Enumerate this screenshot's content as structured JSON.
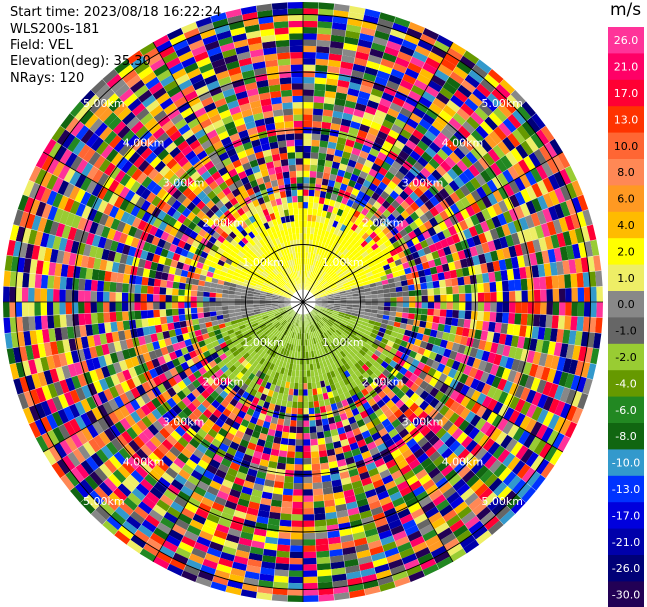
{
  "header": {
    "start_time": "Start time: 2023/08/18 16:22:24",
    "instrument": "WLS200s-181",
    "field": "Field: VEL",
    "elevation": "Elevation(deg): 35.30",
    "nrays": "NRays: 120"
  },
  "colorbar": {
    "unit": "m/s",
    "ticks": [
      "26.0",
      "21.0",
      "17.0",
      "13.0",
      "10.0",
      "8.0",
      "6.0",
      "4.0",
      "2.0",
      "1.0",
      "0.0",
      "-1.0",
      "-2.0",
      "-4.0",
      "-6.0",
      "-8.0",
      "-10.0",
      "-13.0",
      "-17.0",
      "-21.0",
      "-26.0",
      "-30.0"
    ],
    "colors": [
      "#ff3399",
      "#ff0066",
      "#ff0033",
      "#ff3300",
      "#ff6633",
      "#ff8855",
      "#ff9922",
      "#ffbb00",
      "#ffff00",
      "#eeee66",
      "#888888",
      "#666666",
      "#99cc33",
      "#669900",
      "#228822",
      "#116611",
      "#3399cc",
      "#0033ff",
      "#0000dd",
      "#0000aa",
      "#000077",
      "#220055"
    ]
  },
  "chart_data": {
    "type": "ppi",
    "field": "VEL",
    "units": "m/s",
    "nrays": 120,
    "elevation_deg": 35.3,
    "range_ring_labels": [
      "1.00km",
      "2.00km",
      "3.00km",
      "4.00km",
      "5.00km"
    ],
    "color_scale_min": -30.0,
    "color_scale_max": 26.0
  }
}
